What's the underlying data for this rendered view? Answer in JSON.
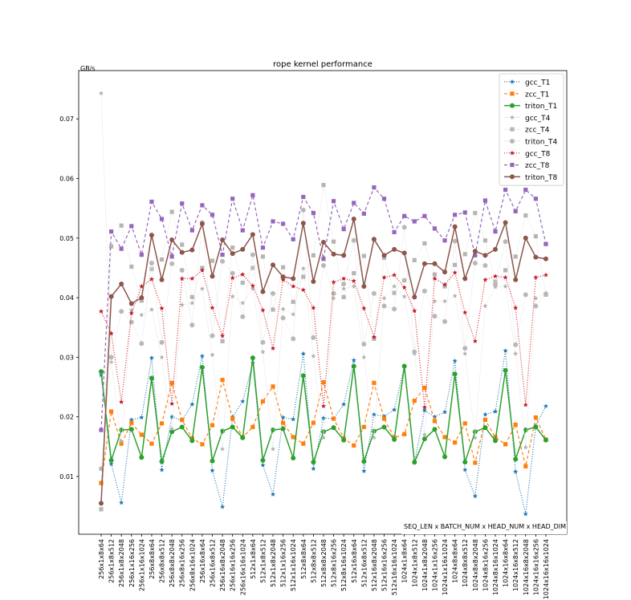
{
  "chart_data": {
    "type": "line",
    "title": "rope kernel performance",
    "xlabel": "SEQ_LEN x BATCH_NUM x HEAD_NUM x HEAD_DIM",
    "ylabel": "GB/s",
    "ylim": [
      0.0,
      0.078
    ],
    "yticks": [
      0.01,
      0.02,
      0.03,
      0.04,
      0.05,
      0.06,
      0.07
    ],
    "ytick_labels": [
      "0.01",
      "0.02",
      "0.03",
      "0.04",
      "0.05",
      "0.06",
      "0.07"
    ],
    "grid": false,
    "legend_position": "upper right",
    "categories": [
      "256x1x8x64",
      "256x1x8x512",
      "256x1x8x2048",
      "256x1x16x256",
      "256x1x16x1024",
      "256x8x8x64",
      "256x8x8x512",
      "256x8x8x2048",
      "256x8x16x256",
      "256x8x16x1024",
      "256x16x8x64",
      "256x16x8x512",
      "256x16x8x2048",
      "256x16x16x256",
      "256x16x16x1024",
      "512x1x8x64",
      "512x1x8x512",
      "512x1x8x2048",
      "512x1x16x256",
      "512x1x16x1024",
      "512x8x8x64",
      "512x8x8x512",
      "512x8x8x2048",
      "512x8x16x256",
      "512x8x16x1024",
      "512x16x8x64",
      "512x16x8x512",
      "512x16x8x2048",
      "512x16x16x256",
      "512x16x16x1024",
      "1024x1x8x64",
      "1024x1x8x512",
      "1024x1x8x2048",
      "1024x1x16x256",
      "1024x1x16x1024",
      "1024x8x8x64",
      "1024x8x8x512",
      "1024x8x8x2048",
      "1024x8x16x256",
      "1024x8x16x1024",
      "1024x16x8x64",
      "1024x16x8x512",
      "1024x16x8x2048",
      "1024x16x16x256",
      "1024x16x16x1024"
    ],
    "series": [
      {
        "name": "gcc_T1",
        "color": "#1f77b4",
        "dash": "1,2",
        "marker": "star",
        "width": 1.2,
        "values": [
          0.027,
          0.0121,
          0.0056,
          0.0195,
          0.0199,
          0.0299,
          0.0111,
          0.02,
          0.0194,
          0.0221,
          0.0302,
          0.011,
          0.0049,
          0.02,
          0.0226,
          0.029,
          0.0119,
          0.007,
          0.0199,
          0.0196,
          0.0306,
          0.0113,
          0.0198,
          0.0197,
          0.0221,
          0.0295,
          0.0109,
          0.0204,
          0.0201,
          0.0212,
          0.0285,
          0.0123,
          0.0211,
          0.02,
          0.0208,
          0.0294,
          0.0111,
          0.0067,
          0.0204,
          0.0209,
          0.0311,
          0.0108,
          0.0037,
          0.0185,
          0.0218
        ]
      },
      {
        "name": "zcc_T1",
        "color": "#ff7f0e",
        "dash": "4,3",
        "marker": "square",
        "width": 1.2,
        "values": [
          0.0089,
          0.0209,
          0.0155,
          0.019,
          0.017,
          0.0155,
          0.0189,
          0.0257,
          0.0195,
          0.0164,
          0.0154,
          0.0186,
          0.0262,
          0.0197,
          0.0166,
          0.0183,
          0.0226,
          0.0251,
          0.019,
          0.0166,
          0.0155,
          0.019,
          0.0258,
          0.0197,
          0.0164,
          0.0152,
          0.0183,
          0.0257,
          0.0197,
          0.0165,
          0.0171,
          0.0227,
          0.0249,
          0.0193,
          0.0166,
          0.0157,
          0.0189,
          0.0123,
          0.0195,
          0.0166,
          0.0154,
          0.0187,
          0.0117,
          0.0199,
          0.0162
        ]
      },
      {
        "name": "triton_T1",
        "color": "#2ca02c",
        "dash": "",
        "marker": "circle",
        "width": 1.5,
        "values": [
          0.0276,
          0.0127,
          0.0178,
          0.0179,
          0.0132,
          0.0265,
          0.0125,
          0.0175,
          0.0183,
          0.016,
          0.0283,
          0.0126,
          0.0176,
          0.0183,
          0.0165,
          0.0299,
          0.0127,
          0.0178,
          0.018,
          0.0131,
          0.0269,
          0.0124,
          0.0175,
          0.0182,
          0.0161,
          0.0285,
          0.0125,
          0.0176,
          0.0183,
          0.0162,
          0.0285,
          0.0124,
          0.0163,
          0.0179,
          0.0133,
          0.0272,
          0.0124,
          0.0175,
          0.0182,
          0.016,
          0.0278,
          0.0129,
          0.0178,
          0.0183,
          0.0161
        ]
      },
      {
        "name": "gcc_T4",
        "color": "#b0b0b0",
        "dash": "",
        "marker": "star",
        "width": 0.5,
        "line_color": "#e6e6e6",
        "values": [
          0.0743,
          0.0292,
          0.0159,
          0.0379,
          0.0371,
          0.038,
          0.03,
          0.018,
          0.0388,
          0.0391,
          0.0415,
          0.0304,
          0.0146,
          0.0402,
          0.0391,
          0.0415,
          0.0309,
          0.0146,
          0.0381,
          0.0372,
          0.0449,
          0.0302,
          0.0165,
          0.0399,
          0.0415,
          0.0419,
          0.03,
          0.0165,
          0.0399,
          0.0419,
          0.0402,
          0.0306,
          0.017,
          0.0394,
          0.0394,
          0.0403,
          0.0306,
          0.0165,
          0.0386,
          0.0418,
          0.0419,
          0.0306,
          0.0149,
          0.0399,
          0.0408
        ]
      },
      {
        "name": "zcc_T4",
        "color": "#b5b5b5",
        "dash": "",
        "marker": "square",
        "width": 0.5,
        "line_color": "#e6e6e6",
        "values": [
          0.0045,
          0.0486,
          0.0521,
          0.0452,
          0.0395,
          0.0448,
          0.0464,
          0.0544,
          0.0489,
          0.0401,
          0.045,
          0.0462,
          0.0327,
          0.0484,
          0.0425,
          0.045,
          0.0469,
          0.038,
          0.0451,
          0.0393,
          0.0435,
          0.0471,
          0.0589,
          0.0494,
          0.0401,
          0.0441,
          0.047,
          0.0331,
          0.0467,
          0.0408,
          0.0429,
          0.0463,
          0.0491,
          0.0439,
          0.0419,
          0.0455,
          0.0473,
          0.0542,
          0.0496,
          0.0427,
          0.0446,
          0.0469,
          0.0538,
          0.0503,
          0.0405
        ]
      },
      {
        "name": "triton_T4",
        "color": "#b8b8b8",
        "dash": "",
        "marker": "circle",
        "width": 0.5,
        "line_color": "#e6e6e6",
        "values": [
          0.0113,
          0.03,
          0.0377,
          0.0359,
          0.0323,
          0.0458,
          0.0325,
          0.0457,
          0.0446,
          0.0354,
          0.0526,
          0.0336,
          0.0461,
          0.0441,
          0.0368,
          0.0472,
          0.0325,
          0.0407,
          0.0366,
          0.0331,
          0.0547,
          0.0333,
          0.0454,
          0.0407,
          0.0423,
          0.0496,
          0.0322,
          0.0407,
          0.0386,
          0.0381,
          0.0518,
          0.0309,
          0.0411,
          0.0369,
          0.036,
          0.0495,
          0.0315,
          0.0458,
          0.0454,
          0.0422,
          0.0494,
          0.0321,
          0.0405,
          0.0386,
          0.0406
        ]
      },
      {
        "name": "gcc_T8",
        "color": "#d62728",
        "dash": "1,2",
        "marker": "star",
        "width": 1.2,
        "marker_color": "#c01c28",
        "values": [
          0.0377,
          0.034,
          0.0225,
          0.0374,
          0.0419,
          0.0431,
          0.0382,
          0.0222,
          0.0432,
          0.0432,
          0.0446,
          0.0383,
          0.0336,
          0.0433,
          0.0439,
          0.042,
          0.0379,
          0.0315,
          0.043,
          0.0419,
          0.0413,
          0.0383,
          0.0218,
          0.0426,
          0.0432,
          0.0428,
          0.0382,
          0.0334,
          0.0434,
          0.0438,
          0.0417,
          0.0378,
          0.0216,
          0.0432,
          0.0422,
          0.0442,
          0.0375,
          0.0327,
          0.043,
          0.0436,
          0.0434,
          0.0383,
          0.022,
          0.0434,
          0.0438
        ]
      },
      {
        "name": "zcc_T8",
        "color": "#9467bd",
        "dash": "4,3",
        "marker": "square",
        "width": 1.2,
        "values": [
          0.0178,
          0.0511,
          0.0482,
          0.052,
          0.0472,
          0.0561,
          0.0532,
          0.0469,
          0.0558,
          0.0513,
          0.0555,
          0.0539,
          0.0472,
          0.0566,
          0.0513,
          0.0572,
          0.0484,
          0.0528,
          0.0524,
          0.0498,
          0.0569,
          0.0542,
          0.0465,
          0.0562,
          0.0515,
          0.0559,
          0.0541,
          0.0585,
          0.0566,
          0.051,
          0.0537,
          0.0528,
          0.0537,
          0.0516,
          0.0496,
          0.0539,
          0.0543,
          0.0471,
          0.0563,
          0.0511,
          0.0581,
          0.0545,
          0.0581,
          0.0566,
          0.049
        ]
      },
      {
        "name": "triton_T8",
        "color": "#8c564b",
        "dash": "",
        "marker": "circle",
        "width": 1.5,
        "values": [
          0.0055,
          0.0402,
          0.0423,
          0.039,
          0.04,
          0.0505,
          0.043,
          0.0497,
          0.0476,
          0.048,
          0.0524,
          0.0436,
          0.0497,
          0.0474,
          0.0481,
          0.0506,
          0.041,
          0.0455,
          0.0435,
          0.0432,
          0.0525,
          0.0427,
          0.0493,
          0.0473,
          0.0471,
          0.0532,
          0.0419,
          0.0498,
          0.0471,
          0.0481,
          0.0475,
          0.0401,
          0.0457,
          0.0457,
          0.0443,
          0.0519,
          0.0432,
          0.0478,
          0.0471,
          0.0481,
          0.0526,
          0.043,
          0.05,
          0.0468,
          0.0465
        ]
      }
    ]
  },
  "legend": {
    "items": [
      "gcc_T1",
      "zcc_T1",
      "triton_T1",
      "gcc_T4",
      "zcc_T4",
      "triton_T4",
      "gcc_T8",
      "zcc_T8",
      "triton_T8"
    ]
  }
}
